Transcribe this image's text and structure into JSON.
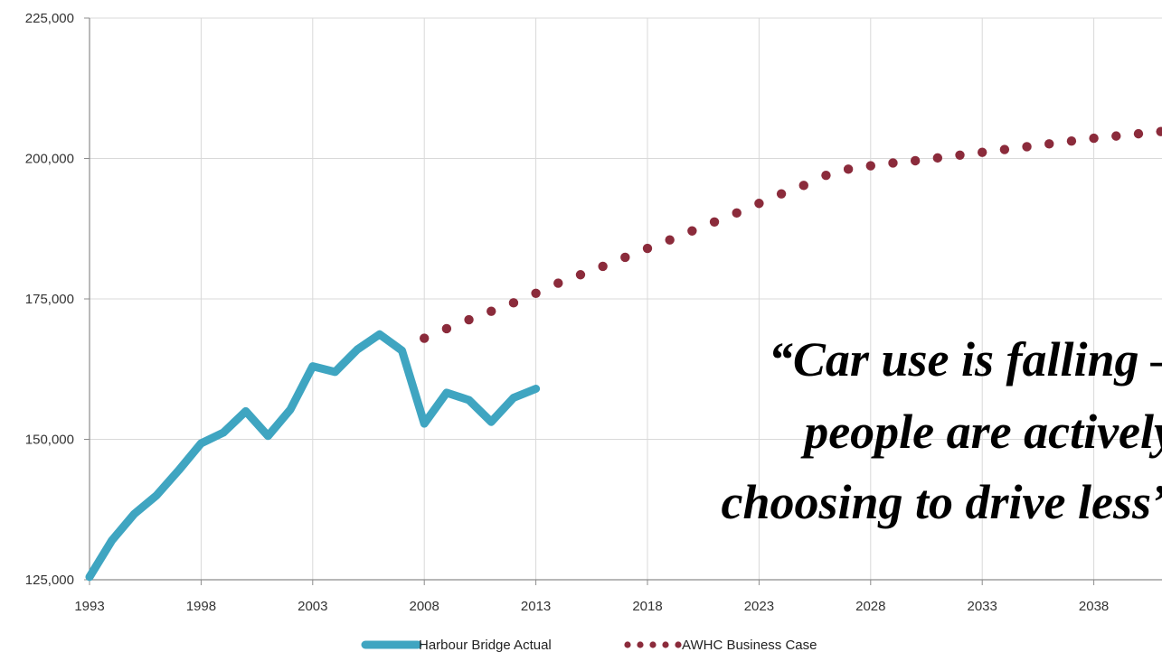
{
  "chart_data": {
    "type": "line",
    "title": "",
    "xlabel": "",
    "ylabel": "",
    "xlim": [
      1993,
      2042
    ],
    "ylim": [
      125000,
      225000
    ],
    "x_ticks": [
      1993,
      1998,
      2003,
      2008,
      2013,
      2018,
      2023,
      2028,
      2033,
      2038
    ],
    "x_tick_labels": [
      "1993",
      "1998",
      "2003",
      "2008",
      "2013",
      "2018",
      "2023",
      "2028",
      "2033",
      "2038"
    ],
    "y_ticks": [
      125000,
      150000,
      175000,
      200000,
      225000
    ],
    "y_tick_labels": [
      "125,000",
      "150,000",
      "175,000",
      "200,000",
      "225,000"
    ],
    "grid": true,
    "legend_position": "bottom",
    "series": [
      {
        "name": "Harbour Bridge Actual",
        "color": "#3fa5c1",
        "style": "solid",
        "x": [
          1993,
          1994,
          1995,
          1996,
          1997,
          1998,
          1999,
          2000,
          2001,
          2002,
          2003,
          2004,
          2005,
          2006,
          2007,
          2008,
          2009,
          2010,
          2011,
          2012,
          2013
        ],
        "y": [
          125500,
          132000,
          136700,
          140000,
          144500,
          149300,
          151200,
          155000,
          150600,
          155300,
          163000,
          162000,
          166000,
          168700,
          165800,
          152800,
          158300,
          157000,
          153100,
          157400,
          159000
        ]
      },
      {
        "name": "AWHC Business Case",
        "color": "#8b2b3b",
        "style": "dotted",
        "x": [
          2008,
          2009,
          2010,
          2011,
          2012,
          2013,
          2014,
          2015,
          2016,
          2017,
          2018,
          2019,
          2020,
          2021,
          2022,
          2023,
          2024,
          2025,
          2026,
          2027,
          2028,
          2029,
          2030,
          2031,
          2032,
          2033,
          2034,
          2035,
          2036,
          2037,
          2038,
          2039,
          2040,
          2041,
          2042
        ],
        "y": [
          168000,
          169700,
          171300,
          172800,
          174300,
          176000,
          177800,
          179300,
          180800,
          182400,
          184000,
          185500,
          187100,
          188700,
          190300,
          192000,
          193700,
          195200,
          197000,
          198100,
          198700,
          199200,
          199600,
          200100,
          200600,
          201100,
          201600,
          202100,
          202600,
          203100,
          203600,
          204000,
          204400,
          204800,
          205200
        ]
      }
    ]
  },
  "annotation": {
    "quote_lines": [
      "“Car use is falling –",
      "people are actively",
      "choosing to drive less”"
    ]
  },
  "colors": {
    "grid": "#d9d9d9",
    "axis": "#8c8c8c"
  }
}
